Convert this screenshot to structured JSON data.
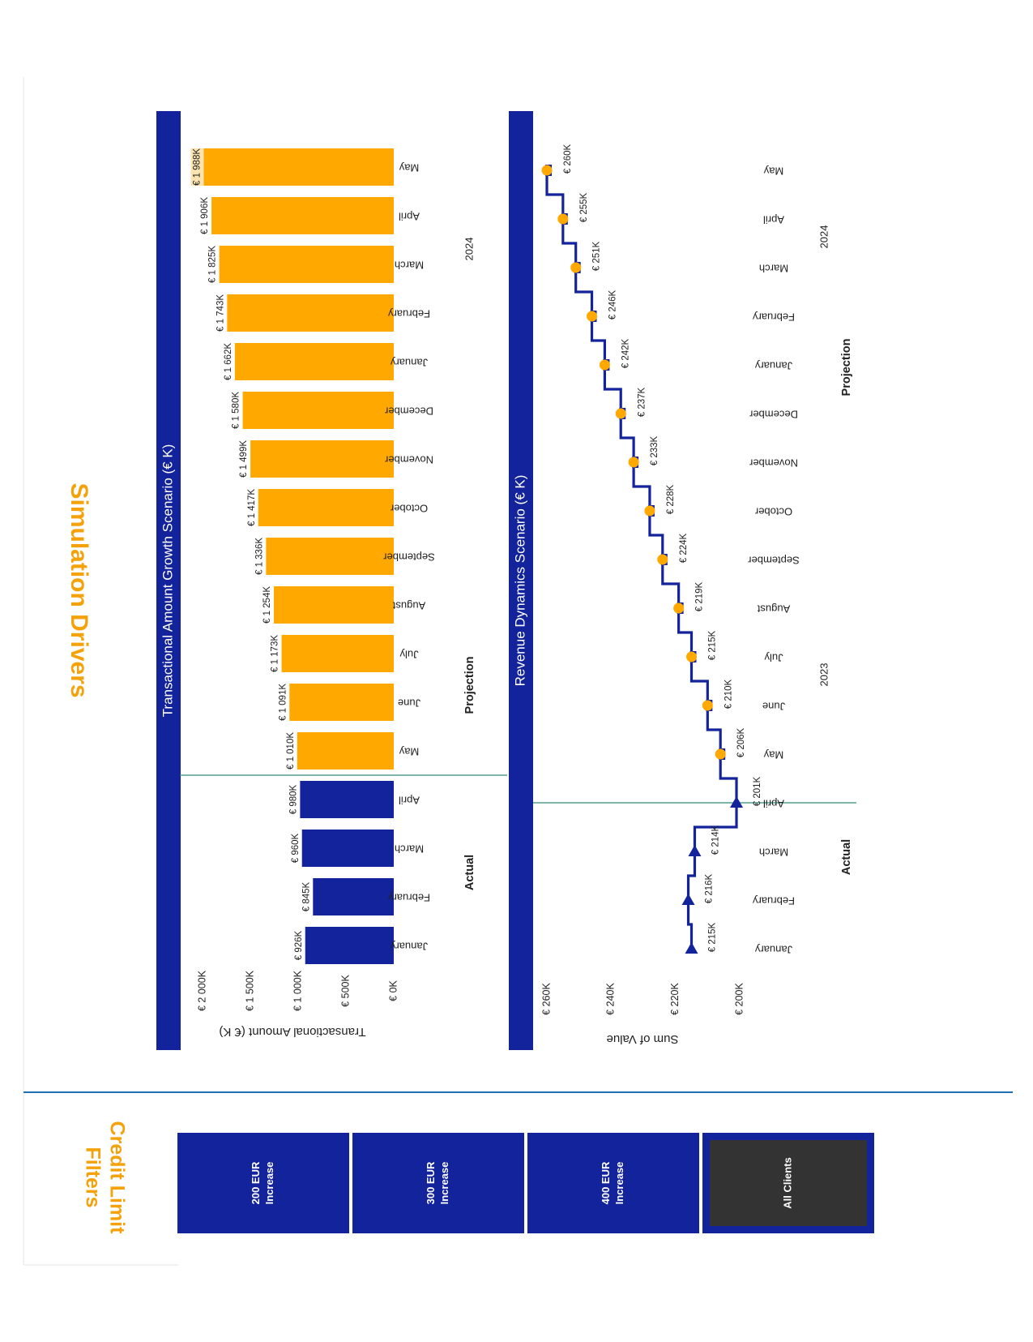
{
  "page_title": "Simulation Drivers",
  "filters": {
    "title_lines": [
      "Credit Limit",
      "Filters"
    ],
    "buttons": [
      {
        "lines": [
          "200 EUR",
          "Increase"
        ],
        "selected": false
      },
      {
        "lines": [
          "300 EUR",
          "Increase"
        ],
        "selected": false
      },
      {
        "lines": [
          "400 EUR",
          "Increase"
        ],
        "selected": false
      },
      {
        "lines": [
          "All Clients"
        ],
        "selected": true
      }
    ]
  },
  "colors": {
    "actual": "#13239B",
    "projection": "#FFA800",
    "header": "#13239B",
    "accent": "#F5A20A",
    "selected_button": "#333333",
    "divider": "#1F6FB5",
    "ref_line": "#2E8B7A"
  },
  "chart_data": [
    {
      "type": "bar",
      "title": "Transactional Amount Growth Scenario (€ K)",
      "ylabel": "Transactional Amount (€ K)",
      "ylim": [
        0,
        2000
      ],
      "yticks": [
        "€ 0K",
        "€ 500K",
        "€ 1 000K",
        "€ 1 500K",
        "€ 2 000K"
      ],
      "categories": [
        "January",
        "February",
        "March",
        "April",
        "May",
        "June",
        "July",
        "August",
        "September",
        "October",
        "November",
        "December",
        "January",
        "February",
        "March",
        "April",
        "May"
      ],
      "values": [
        926,
        845,
        960,
        980,
        1010,
        1091,
        1173,
        1254,
        1336,
        1417,
        1499,
        1580,
        1662,
        1743,
        1825,
        1906,
        1988
      ],
      "labels": [
        "€ 926K",
        "€ 845K",
        "€ 960K",
        "€ 980K",
        "€ 1 010K",
        "€ 1 091K",
        "€ 1 173K",
        "€ 1 254K",
        "€ 1 336K",
        "€ 1 417K",
        "€ 1 499K",
        "€ 1 580K",
        "€ 1 662K",
        "€ 1 743K",
        "€ 1 825K",
        "€ 1 906K",
        "€ 1 988K"
      ],
      "groups": [
        {
          "label": "Actual",
          "count": 4
        },
        {
          "label": "Projection",
          "count": 13
        }
      ],
      "year_label": "2024"
    },
    {
      "type": "line",
      "title": "Revenue Dynamics Scenario (€ K)",
      "ylabel": "Sum of Value",
      "ylim": [
        200,
        260
      ],
      "yticks": [
        "€ 200K",
        "€ 220K",
        "€ 240K",
        "€ 260K"
      ],
      "categories": [
        "January",
        "February",
        "March",
        "April",
        "May",
        "June",
        "July",
        "August",
        "September",
        "October",
        "November",
        "December",
        "January",
        "February",
        "March",
        "April",
        "May"
      ],
      "values": [
        215,
        216,
        214,
        201,
        206,
        210,
        215,
        219,
        224,
        228,
        233,
        237,
        242,
        246,
        251,
        255,
        260
      ],
      "labels": [
        "€ 215K",
        "€ 216K",
        "€ 214K",
        "€ 201K",
        "€ 206K",
        "€ 210K",
        "€ 215K",
        "€ 219K",
        "€ 224K",
        "€ 228K",
        "€ 233K",
        "€ 237K",
        "€ 242K",
        "€ 246K",
        "€ 251K",
        "€ 255K",
        "€ 260K"
      ],
      "groups": [
        {
          "label": "Actual",
          "count": 4
        },
        {
          "label": "Projection",
          "count": 13
        }
      ],
      "year_labels": [
        "2023",
        "2024"
      ]
    }
  ]
}
